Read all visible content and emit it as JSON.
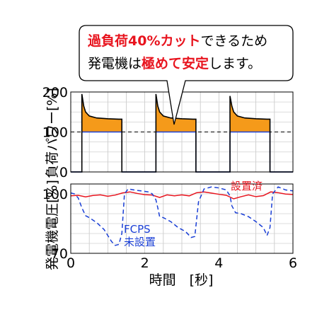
{
  "callout": {
    "line1_accent": "過負荷40%カット",
    "line1_rest": "できるため",
    "line2_a": "発電機は",
    "line2_accent": "極めて安定",
    "line2_rest": "します。",
    "accent_color": "#e8141e"
  },
  "chart_data": [
    {
      "type": "line",
      "panel": "top",
      "ylabel": "負荷パワー[%]",
      "xlim": [
        0,
        6
      ],
      "ylim": [
        0,
        200
      ],
      "yticks": [
        0,
        100,
        200
      ],
      "grid": true,
      "reference_line": 100,
      "fill_color": "#f59a1a",
      "series": [
        {
          "color": "#000000",
          "x": [
            0,
            0.3,
            0.3,
            0.35,
            0.4,
            0.5,
            0.7,
            1.0,
            1.3,
            1.38,
            1.38,
            2.3,
            2.3,
            2.35,
            2.4,
            2.5,
            2.7,
            3.0,
            3.3,
            3.38,
            3.38,
            4.3,
            4.3,
            4.35,
            4.4,
            4.5,
            4.7,
            5.0,
            5.3,
            5.38,
            5.38,
            6.0
          ],
          "y": [
            0,
            0,
            195,
            165,
            150,
            140,
            135,
            133,
            132,
            132,
            0,
            0,
            195,
            165,
            150,
            140,
            135,
            133,
            132,
            132,
            0,
            0,
            190,
            165,
            150,
            140,
            135,
            133,
            132,
            132,
            0,
            0
          ]
        },
        {
          "color": "#1a3fd6",
          "x": [
            0,
            0.3,
            0.3,
            1.38,
            1.38,
            2.3,
            2.3,
            3.38,
            3.38,
            4.3,
            4.3,
            5.38,
            5.38,
            6.0
          ],
          "y": [
            0,
            0,
            100,
            100,
            0,
            0,
            100,
            100,
            0,
            0,
            100,
            100,
            0,
            0
          ]
        }
      ]
    },
    {
      "type": "line",
      "panel": "bottom",
      "ylabel": "発電機電圧[%]",
      "xlabel": "時間　[秒]",
      "xlim": [
        0,
        6
      ],
      "xticks": [
        0,
        2,
        4,
        6
      ],
      "ylim": [
        70,
        105
      ],
      "yticks": [
        70,
        100
      ],
      "grid": true,
      "series": [
        {
          "name": "設置済",
          "color": "#e8141e",
          "style": "solid",
          "x": [
            0,
            0.2,
            0.4,
            0.6,
            0.8,
            1.0,
            1.2,
            1.4,
            1.6,
            1.8,
            2.0,
            2.2,
            2.4,
            2.6,
            2.8,
            3.0,
            3.2,
            3.4,
            3.6,
            3.8,
            4.0,
            4.2,
            4.4,
            4.6,
            4.8,
            5.0,
            5.2,
            5.4,
            5.6,
            5.8,
            6.0
          ],
          "y": [
            99,
            99.3,
            98.5,
            99.2,
            99.5,
            98.8,
            99.4,
            100.5,
            101,
            100.2,
            99.6,
            99.4,
            98.2,
            99.5,
            99,
            99.5,
            99,
            100.6,
            101,
            100.4,
            99.8,
            99.3,
            97.5,
            98.6,
            99.5,
            98.6,
            99.1,
            101,
            100.6,
            99.9,
            99.7
          ]
        },
        {
          "name": "FCPS\n未設置",
          "color": "#1a3fd6",
          "style": "dashed",
          "x": [
            0,
            0.1,
            0.2,
            0.3,
            0.4,
            0.5,
            0.7,
            0.9,
            1.1,
            1.2,
            1.3,
            1.38,
            1.45,
            1.55,
            1.7,
            1.9,
            2.1,
            2.2,
            2.3,
            2.35,
            2.4,
            2.5,
            2.7,
            2.9,
            3.1,
            3.25,
            3.35,
            3.45,
            3.6,
            3.8,
            4.0,
            4.2,
            4.3,
            4.35,
            4.45,
            4.6,
            4.8,
            5.0,
            5.2,
            5.3,
            5.38,
            5.45,
            5.6,
            5.8,
            6.0
          ],
          "y": [
            100.5,
            100,
            98,
            93,
            89,
            88,
            85.5,
            82,
            76,
            74,
            74.5,
            80,
            100,
            102.5,
            102,
            101.5,
            101,
            100,
            97,
            93,
            88.5,
            88,
            86,
            83,
            81,
            78,
            78.5,
            96,
            102.5,
            103.5,
            103,
            102,
            99,
            94,
            90.5,
            90,
            88.5,
            86,
            83,
            79,
            83,
            100,
            103.5,
            102,
            101.5
          ]
        }
      ]
    }
  ]
}
